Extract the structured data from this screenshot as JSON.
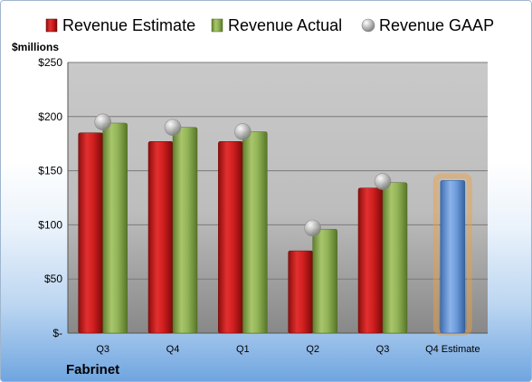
{
  "chart_data": {
    "type": "bar",
    "unit_label": "$millions",
    "company": "Fabrinet",
    "categories": [
      "Q3",
      "Q4",
      "Q1",
      "Q2",
      "Q3",
      "Q4 Estimate"
    ],
    "ylim": [
      0,
      250
    ],
    "y_ticks": [
      0,
      50,
      100,
      150,
      200,
      250
    ],
    "y_tick_labels": [
      "$-",
      "$50",
      "$100",
      "$150",
      "$200",
      "$250"
    ],
    "grid": true,
    "legend_placement": "top",
    "series": [
      {
        "name": "Revenue Estimate",
        "color": "#c81a1a",
        "marker": "bar",
        "values": [
          185,
          177,
          177,
          76,
          134,
          null
        ]
      },
      {
        "name": "Revenue Actual",
        "color": "#8aad4e",
        "marker": "bar",
        "values": [
          194,
          190,
          186,
          96,
          139,
          null
        ]
      },
      {
        "name": "Revenue GAAP",
        "color": "#b0b0b0",
        "marker": "circle",
        "values": [
          195,
          190,
          186,
          97,
          140,
          null
        ]
      }
    ],
    "estimate_bar": {
      "category_index": 5,
      "value": 141,
      "color": "#5b8fd6",
      "glow": "#f0a040"
    }
  }
}
